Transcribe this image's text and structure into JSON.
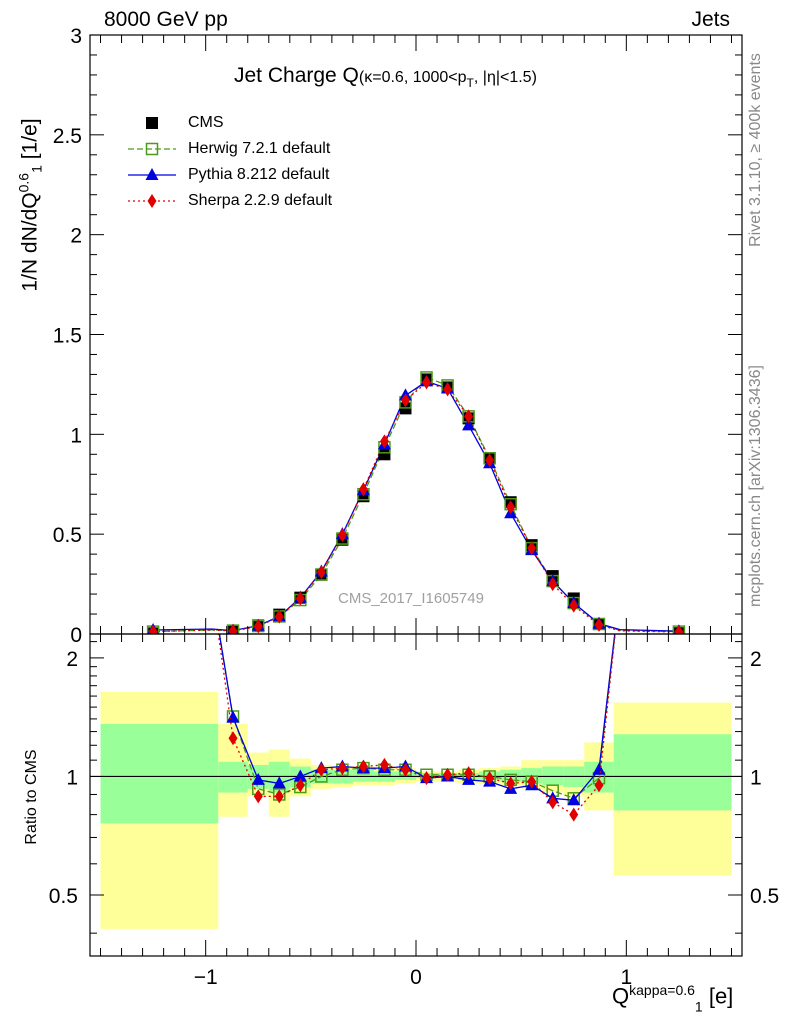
{
  "header": {
    "left": "8000 GeV pp",
    "right": "Jets",
    "plot_title_main": "Jet Charge Q",
    "plot_title_sub": "(κ=0.6, 1000<p",
    "plot_title_sub2": "T",
    "plot_title_sub3": ", |η|<1.5)",
    "side_rivet": "Rivet 3.1.10, ≥ 400k events",
    "side_mcplots": "mcplots.cern.ch [arXiv:1306.3436]",
    "analysis_id": "CMS_2017_I1605749",
    "ylabel_main": "1/N dN/dQ",
    "ylabel_main_sup": "0.6",
    "ylabel_main_sub": "1",
    "ylabel_main_unit": " [1/e]",
    "ylabel_ratio": "Ratio to CMS",
    "xlabel": "Q",
    "xlabel_sup": "kappa=0.6",
    "xlabel_sub": "1",
    "xlabel_unit": " [e]"
  },
  "legend": [
    "CMS",
    "Herwig 7.2.1 default",
    "Pythia 8.212 default",
    "Sherpa 2.2.9 default"
  ],
  "colors": {
    "cms": "#000000",
    "herwig": "#4c9a1a",
    "pythia": "#0000e0",
    "sherpa": "#e00000",
    "band_yellow": "#ffff99",
    "band_green": "#99ff99"
  },
  "chart_data": [
    {
      "type": "line",
      "panel": "main",
      "xlim": [
        -1.55,
        1.55
      ],
      "ylim": [
        0,
        3
      ],
      "x_ticks": [
        -1,
        0,
        1
      ],
      "y_ticks": [
        0,
        0.5,
        1,
        1.5,
        2,
        2.5,
        3
      ],
      "y_tick_labels": [
        "0",
        "0.5",
        "1",
        "1.5",
        "2",
        "2.5",
        "3"
      ],
      "x": [
        -1.25,
        -0.97,
        -0.87,
        -0.75,
        -0.65,
        -0.55,
        -0.45,
        -0.35,
        -0.25,
        -0.15,
        -0.05,
        0.05,
        0.15,
        0.25,
        0.35,
        0.45,
        0.55,
        0.65,
        0.75,
        0.87,
        0.97,
        1.25
      ],
      "series": [
        {
          "name": "CMS",
          "marker": "square",
          "values": [
            0.003,
            0.006,
            0.012,
            0.043,
            0.097,
            0.182,
            0.297,
            0.472,
            0.69,
            0.9,
            1.13,
            1.275,
            1.235,
            1.08,
            0.88,
            0.66,
            0.445,
            0.29,
            0.178,
            0.05,
            0.009,
            0.004
          ]
        },
        {
          "name": "Herwig 7.2.1 default",
          "marker": "open-square",
          "values": [
            0.012,
            0.02,
            0.017,
            0.04,
            0.088,
            0.17,
            0.298,
            0.478,
            0.7,
            0.935,
            1.16,
            1.285,
            1.245,
            1.09,
            0.88,
            0.65,
            0.43,
            0.265,
            0.155,
            0.05,
            0.018,
            0.012
          ]
        },
        {
          "name": "Pythia 8.212 default",
          "marker": "triangle",
          "values": [
            0.02,
            0.025,
            0.017,
            0.042,
            0.088,
            0.182,
            0.313,
            0.5,
            0.72,
            0.95,
            1.195,
            1.265,
            1.23,
            1.045,
            0.855,
            0.605,
            0.42,
            0.265,
            0.155,
            0.052,
            0.022,
            0.014
          ]
        },
        {
          "name": "Sherpa 2.2.9 default",
          "marker": "diamond",
          "values": [
            0.012,
            0.02,
            0.015,
            0.038,
            0.087,
            0.178,
            0.31,
            0.495,
            0.725,
            0.965,
            1.17,
            1.26,
            1.225,
            1.09,
            0.87,
            0.635,
            0.43,
            0.25,
            0.142,
            0.046,
            0.016,
            0.01
          ]
        }
      ]
    },
    {
      "type": "line",
      "panel": "ratio",
      "ylabel": "Ratio to CMS",
      "xlim": [
        -1.55,
        1.55
      ],
      "ylim": [
        0.35,
        2.3
      ],
      "x_ticks": [
        -1,
        0,
        1
      ],
      "x_tick_labels": [
        "−1",
        "0",
        "1"
      ],
      "y_ticks": [
        0.5,
        1,
        2
      ],
      "y_tick_labels": [
        "0.5",
        "1",
        "2"
      ],
      "reference_line": 1,
      "x": [
        -0.87,
        -0.75,
        -0.65,
        -0.55,
        -0.45,
        -0.35,
        -0.25,
        -0.15,
        -0.05,
        0.05,
        0.15,
        0.25,
        0.35,
        0.45,
        0.55,
        0.65,
        0.75,
        0.87
      ],
      "series": [
        {
          "name": "Herwig 7.2.1 default",
          "marker": "open-square",
          "values": [
            1.42,
            0.93,
            0.9,
            0.94,
            1.0,
            1.04,
            1.05,
            1.04,
            1.04,
            1.01,
            1.01,
            1.01,
            1.0,
            0.98,
            0.97,
            0.92,
            0.88,
            0.99
          ],
          "offscale_ends": [
            {
              "x": -0.97,
              "y": 3.0
            },
            {
              "x": 0.97,
              "y": 3.0
            }
          ]
        },
        {
          "name": "Pythia 8.212 default",
          "marker": "triangle",
          "values": [
            1.41,
            0.98,
            0.96,
            1.0,
            1.05,
            1.06,
            1.05,
            1.05,
            1.06,
            0.99,
            1.0,
            0.98,
            0.97,
            0.93,
            0.95,
            0.88,
            0.87,
            1.04
          ],
          "offscale_ends": [
            {
              "x": -0.97,
              "y": 3.0
            },
            {
              "x": 0.97,
              "y": 3.0
            }
          ]
        },
        {
          "name": "Sherpa 2.2.9 default",
          "marker": "diamond",
          "values": [
            1.25,
            0.89,
            0.89,
            0.95,
            1.04,
            1.05,
            1.06,
            1.07,
            1.04,
            0.99,
            1.01,
            1.02,
            0.99,
            0.96,
            0.97,
            0.86,
            0.8,
            0.95
          ],
          "offscale_ends": [
            {
              "x": -0.97,
              "y": 3.0
            },
            {
              "x": 0.97,
              "y": 3.0
            }
          ]
        }
      ],
      "uncertainty_bands": {
        "edges": [
          -1.5,
          -0.94,
          -0.8,
          -0.7,
          -0.6,
          -0.5,
          -0.4,
          -0.3,
          -0.2,
          -0.1,
          0,
          0.1,
          0.2,
          0.3,
          0.4,
          0.5,
          0.6,
          0.7,
          0.8,
          0.94,
          1.5
        ],
        "yellow": [
          [
            0.41,
            1.64
          ],
          [
            0.79,
            1.36
          ],
          [
            0.89,
            1.15
          ],
          [
            0.79,
            1.17
          ],
          [
            0.89,
            1.11
          ],
          [
            0.93,
            1.07
          ],
          [
            0.94,
            1.06
          ],
          [
            0.95,
            1.06
          ],
          [
            0.95,
            1.05
          ],
          [
            0.96,
            1.05
          ],
          [
            0.97,
            1.03
          ],
          [
            0.97,
            1.03
          ],
          [
            0.96,
            1.04
          ],
          [
            0.96,
            1.05
          ],
          [
            0.95,
            1.06
          ],
          [
            0.93,
            1.1
          ],
          [
            0.91,
            1.1
          ],
          [
            0.89,
            1.1
          ],
          [
            0.82,
            1.22
          ],
          [
            0.56,
            1.54
          ]
        ],
        "green": [
          [
            0.76,
            1.36
          ],
          [
            0.91,
            1.09
          ],
          [
            0.93,
            1.07
          ],
          [
            0.91,
            1.09
          ],
          [
            0.94,
            1.06
          ],
          [
            0.96,
            1.04
          ],
          [
            0.96,
            1.04
          ],
          [
            0.97,
            1.04
          ],
          [
            0.97,
            1.03
          ],
          [
            0.98,
            1.03
          ],
          [
            0.99,
            1.02
          ],
          [
            0.99,
            1.02
          ],
          [
            0.98,
            1.02
          ],
          [
            0.98,
            1.03
          ],
          [
            0.97,
            1.04
          ],
          [
            0.96,
            1.05
          ],
          [
            0.95,
            1.06
          ],
          [
            0.94,
            1.06
          ],
          [
            0.91,
            1.09
          ],
          [
            0.82,
            1.28
          ]
        ]
      }
    }
  ]
}
